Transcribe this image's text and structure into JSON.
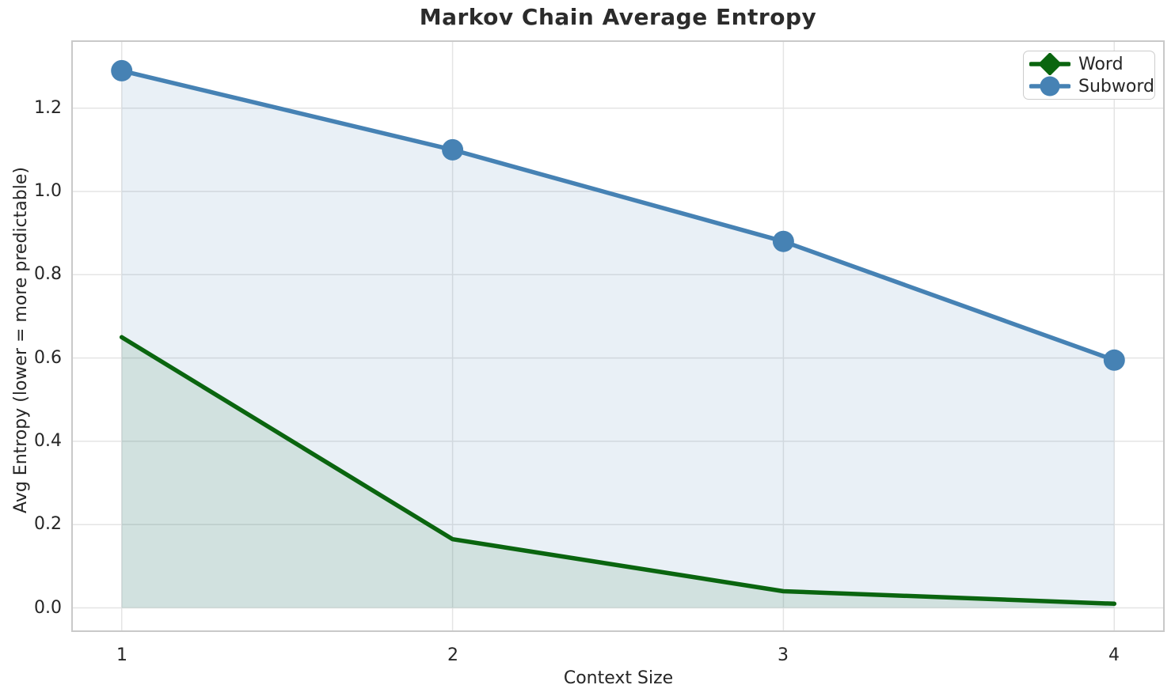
{
  "chart_data": {
    "type": "line",
    "title": "Markov Chain Average Entropy",
    "xlabel": "Context Size",
    "ylabel": "Avg Entropy (lower = more predictable)",
    "x": [
      1,
      2,
      3,
      4
    ],
    "series": [
      {
        "name": "Word",
        "color": "#0a650f",
        "marker": "diamond",
        "values": [
          0.65,
          0.165,
          0.04,
          0.01
        ],
        "fill_alpha": 0.11
      },
      {
        "name": "Subword",
        "color": "#4682b4",
        "marker": "circle",
        "values": [
          1.29,
          1.1,
          0.88,
          0.595
        ],
        "fill_alpha": 0.12
      }
    ],
    "xticks": [
      1,
      2,
      3,
      4
    ],
    "xtick_labels": [
      "1",
      "2",
      "3",
      "4"
    ],
    "yticks": [
      0.0,
      0.2,
      0.4,
      0.6,
      0.8,
      1.0,
      1.2
    ],
    "ytick_labels": [
      "0.0",
      "0.2",
      "0.4",
      "0.6",
      "0.8",
      "1.0",
      "1.2"
    ],
    "xlim": [
      0.85,
      4.15
    ],
    "ylim": [
      -0.056,
      1.361
    ],
    "grid": true,
    "fill_to_zero": true,
    "legend_position": "upper right"
  },
  "colors": {
    "text": "#262626",
    "grid": "#e4e4e4",
    "spine": "#c9c9c9",
    "background": "#ffffff",
    "legend_border": "#cccccc"
  }
}
